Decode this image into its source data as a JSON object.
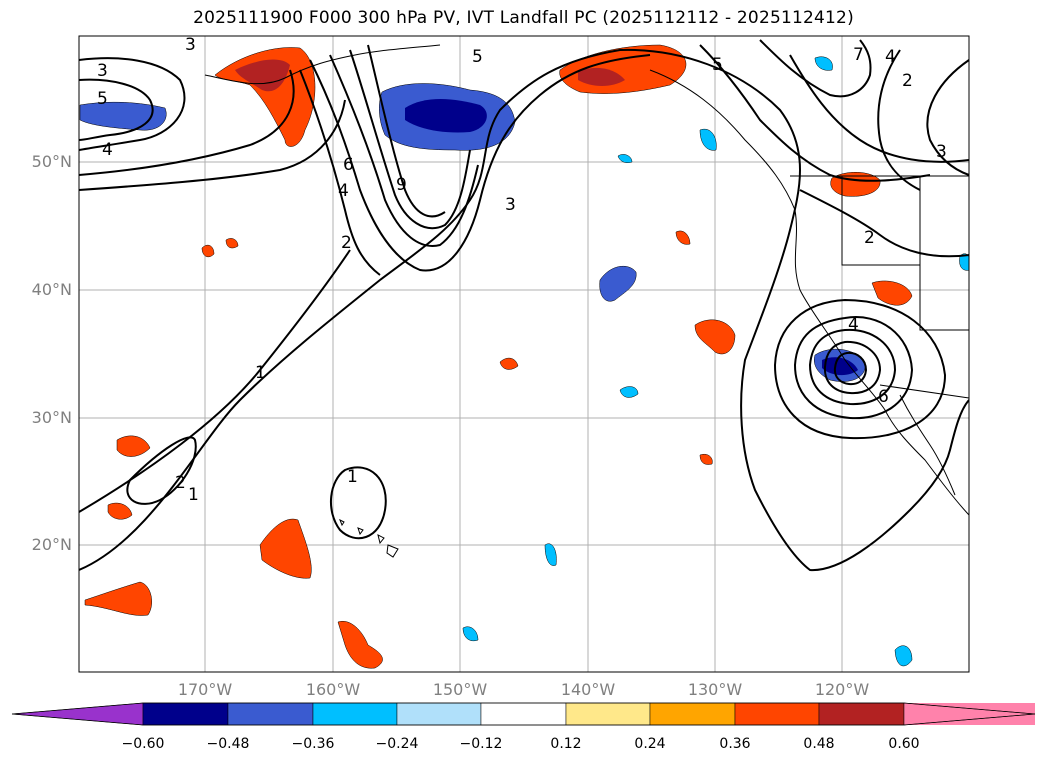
{
  "title": "2025111900 F000 300 hPa PV, IVT Landfall PC (2025112112 - 2025112412)",
  "lat_labels": [
    "50°N",
    "40°N",
    "30°N",
    "20°N"
  ],
  "lon_labels": [
    "170°W",
    "160°W",
    "150°W",
    "140°W",
    "130°W",
    "120°W"
  ],
  "colorbar": {
    "ticks": [
      "−0.60",
      "−0.48",
      "−0.36",
      "−0.24",
      "−0.12",
      "0.12",
      "0.24",
      "0.36",
      "0.48",
      "0.60"
    ],
    "colors": [
      "#9932cc",
      "#00008b",
      "#3a5bd0",
      "#00bfff",
      "#b0e0fa",
      "#ffffff",
      "#ffe88a",
      "#ffa500",
      "#ff4500",
      "#b22222",
      "#ff82ab"
    ]
  },
  "pv_contour_labels": [
    "1",
    "2",
    "3",
    "4",
    "5",
    "6",
    "7",
    "9"
  ]
}
